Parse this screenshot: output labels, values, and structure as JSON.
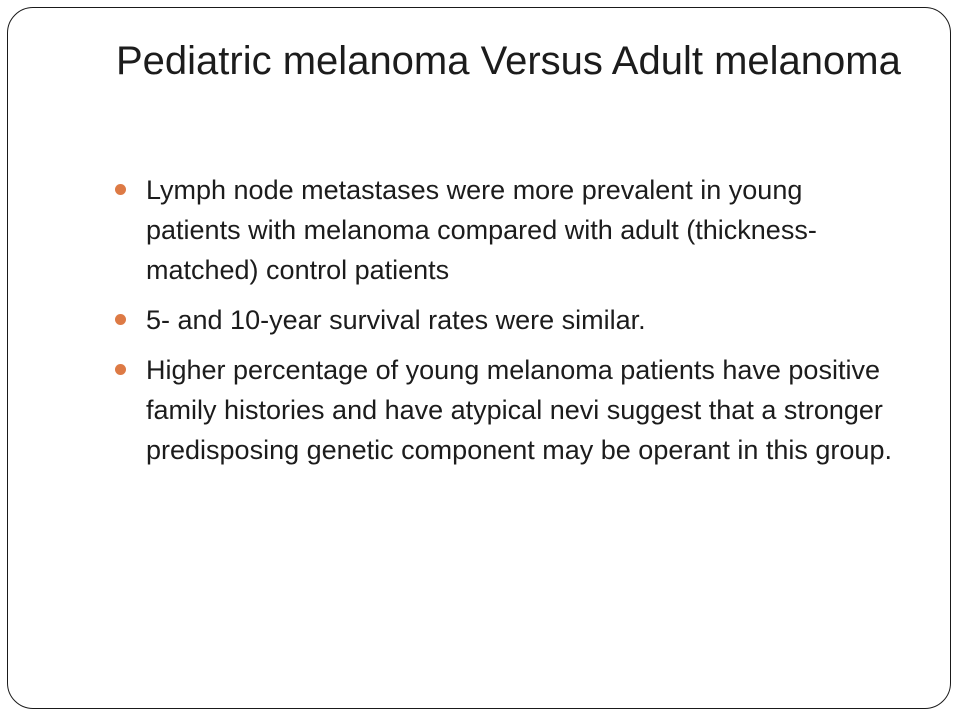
{
  "slide": {
    "title": "Pediatric melanoma Versus Adult melanoma",
    "bullets": [
      "Lymph node metastases were more prevalent in young patients with melanoma compared with adult (thickness-matched) control patients",
      "5- and 10-year survival rates were similar.",
      "Higher percentage of young melanoma patients have positive family histories and have atypical nevi suggest that a stronger predisposing genetic component may be operant in this group."
    ],
    "bullet_color": "#dd7a45",
    "border_color": "#1a1a1a",
    "text_color": "#1c1c1c"
  }
}
